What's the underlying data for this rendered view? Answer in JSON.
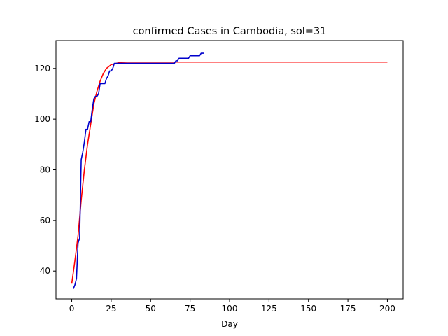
{
  "chart_data": {
    "type": "line",
    "title": "confirmed Cases in Cambodia, sol=31",
    "xlabel": "Day",
    "ylabel": "",
    "xlim": [
      -10,
      210
    ],
    "ylim": [
      29,
      131
    ],
    "xticks": [
      0,
      25,
      50,
      75,
      100,
      125,
      150,
      175,
      200
    ],
    "yticks": [
      40,
      60,
      80,
      100,
      120
    ],
    "grid": false,
    "series": [
      {
        "color": "#ff0000",
        "points": [
          [
            0,
            35
          ],
          [
            2,
            44
          ],
          [
            4,
            54
          ],
          [
            6,
            68
          ],
          [
            8,
            80
          ],
          [
            10,
            90
          ],
          [
            12,
            98
          ],
          [
            14,
            106
          ],
          [
            16,
            111
          ],
          [
            18,
            115
          ],
          [
            20,
            118
          ],
          [
            22,
            120
          ],
          [
            25,
            121.5
          ],
          [
            30,
            122.3
          ],
          [
            35,
            122.5
          ],
          [
            50,
            122.5
          ],
          [
            100,
            122.5
          ],
          [
            150,
            122.5
          ],
          [
            200,
            122.5
          ]
        ]
      },
      {
        "color": "#0000cc",
        "points": [
          [
            1,
            33
          ],
          [
            2,
            34.5
          ],
          [
            3,
            37
          ],
          [
            4,
            51
          ],
          [
            5,
            53
          ],
          [
            6,
            84
          ],
          [
            7,
            87
          ],
          [
            8,
            91
          ],
          [
            9,
            96
          ],
          [
            10,
            96
          ],
          [
            11,
            99
          ],
          [
            12,
            99
          ],
          [
            13,
            104
          ],
          [
            14,
            108
          ],
          [
            15,
            109
          ],
          [
            16,
            109
          ],
          [
            17,
            110
          ],
          [
            18,
            114
          ],
          [
            19,
            114
          ],
          [
            20,
            114
          ],
          [
            21,
            114
          ],
          [
            22,
            116
          ],
          [
            23,
            117
          ],
          [
            24,
            119
          ],
          [
            25,
            119
          ],
          [
            26,
            120
          ],
          [
            27,
            122
          ],
          [
            28,
            122
          ],
          [
            65,
            122
          ],
          [
            66,
            123
          ],
          [
            67,
            123
          ],
          [
            68,
            124
          ],
          [
            74,
            124
          ],
          [
            75,
            125
          ],
          [
            81,
            125
          ],
          [
            82,
            126
          ],
          [
            84,
            126
          ]
        ]
      }
    ]
  }
}
